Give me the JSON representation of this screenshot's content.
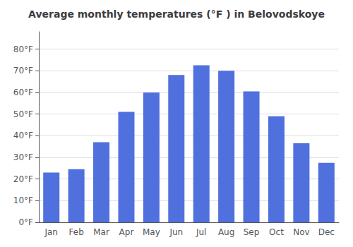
{
  "chart_data": {
    "type": "bar",
    "title": "Average monthly temperatures (°F ) in Belovodskoye",
    "categories": [
      "Jan",
      "Feb",
      "Mar",
      "Apr",
      "May",
      "Jun",
      "Jul",
      "Aug",
      "Sep",
      "Oct",
      "Nov",
      "Dec"
    ],
    "values": [
      23,
      24.5,
      37,
      51,
      60,
      68,
      72.5,
      70,
      60.5,
      49,
      36.5,
      27.5
    ],
    "ylim": [
      0,
      88
    ],
    "yticks": [
      {
        "value": 0,
        "label": "0°F"
      },
      {
        "value": 10,
        "label": "10°F"
      },
      {
        "value": 20,
        "label": "20°F"
      },
      {
        "value": 30,
        "label": "30°F"
      },
      {
        "value": 40,
        "label": "40°F"
      },
      {
        "value": 50,
        "label": "50°F"
      },
      {
        "value": 60,
        "label": "60°F"
      },
      {
        "value": 70,
        "label": "70°F"
      },
      {
        "value": 80,
        "label": "80°F"
      }
    ],
    "grid": true
  }
}
